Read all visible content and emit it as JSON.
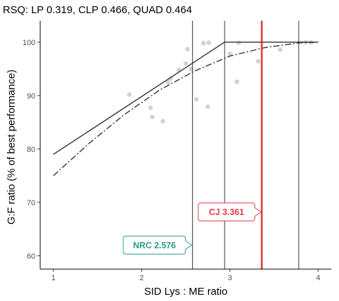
{
  "chart_data": {
    "type": "scatter",
    "title": "RSQ: LP 0.319, CLP 0.466, QUAD 0.464",
    "xlabel": "SID Lys : ME ratio",
    "ylabel": "G:F ratio (% of best performance)",
    "xlim": [
      0.85,
      4.15
    ],
    "ylim": [
      57.5,
      104.0
    ],
    "x_ticks": [
      1,
      2,
      3,
      4
    ],
    "y_ticks": [
      60,
      70,
      80,
      90,
      100
    ],
    "grid": false,
    "points": [
      {
        "x": 1.86,
        "y": 90.2
      },
      {
        "x": 2.1,
        "y": 87.7
      },
      {
        "x": 2.12,
        "y": 86.0
      },
      {
        "x": 2.24,
        "y": 85.2
      },
      {
        "x": 2.3,
        "y": 92.5
      },
      {
        "x": 2.33,
        "y": 93.2
      },
      {
        "x": 2.42,
        "y": 94.8
      },
      {
        "x": 2.5,
        "y": 96.0
      },
      {
        "x": 2.52,
        "y": 98.7
      },
      {
        "x": 2.56,
        "y": 95.0
      },
      {
        "x": 2.62,
        "y": 89.3
      },
      {
        "x": 2.7,
        "y": 99.8
      },
      {
        "x": 2.75,
        "y": 87.9
      },
      {
        "x": 2.76,
        "y": 99.9
      },
      {
        "x": 3.0,
        "y": 97.8
      },
      {
        "x": 3.08,
        "y": 92.6
      },
      {
        "x": 3.1,
        "y": 99.9
      },
      {
        "x": 3.32,
        "y": 96.4
      },
      {
        "x": 3.57,
        "y": 98.6
      },
      {
        "x": 3.86,
        "y": 100.0
      },
      {
        "x": 3.92,
        "y": 100.0
      }
    ],
    "series": [
      {
        "style": "solid",
        "x": [
          1.0,
          2.94,
          4.0
        ],
        "y": [
          79.0,
          100.0,
          100.0
        ]
      },
      {
        "style": "dashdot",
        "x": [
          1.0,
          1.4,
          1.8,
          2.2,
          2.6,
          3.0,
          3.4,
          3.8,
          4.0
        ],
        "y": [
          75.0,
          81.0,
          86.4,
          91.0,
          94.6,
          97.4,
          99.0,
          99.9,
          100.0
        ]
      }
    ],
    "vlines": [
      {
        "x": 2.576,
        "color": "#333333"
      },
      {
        "x": 2.94,
        "color": "#333333"
      },
      {
        "x": 3.361,
        "color": "#e41a1c"
      },
      {
        "x": 3.78,
        "color": "#333333"
      }
    ],
    "annotations": [
      {
        "text": "NRC 2.576",
        "x": 2.576,
        "y": 62.0,
        "color": "#2a9d8f"
      },
      {
        "text": "CJ 3.361",
        "x": 3.361,
        "y": 68.2,
        "color": "#e23b47"
      }
    ]
  }
}
